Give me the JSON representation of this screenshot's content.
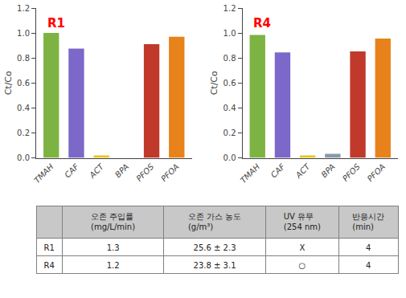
{
  "chart_data": [
    {
      "type": "bar",
      "categories": [
        "TMAH",
        "CAF",
        "ACT",
        "BPA",
        "PFOS",
        "PFOA"
      ],
      "values": [
        1.0,
        0.875,
        0.02,
        0.0,
        0.91,
        0.97
      ],
      "colors": [
        "#7CB342",
        "#7B68C8",
        "#E6C619",
        "#9B9B9B",
        "#C0392B",
        "#E8821A"
      ],
      "ylabel": "Ct/Co",
      "ylim": [
        0,
        1.2
      ],
      "yticks": [
        {
          "value": 0,
          "label": "0.0"
        },
        0.2,
        0.4,
        0.6,
        0.8,
        {
          "value": 1,
          "label": "1.0"
        },
        1.2
      ],
      "grid": false,
      "annotations": [
        {
          "text": "R1",
          "color": "#FF0000"
        }
      ]
    },
    {
      "type": "bar",
      "categories": [
        "TMAH",
        "CAF",
        "ACT",
        "BPA",
        "PFOS",
        "PFOA"
      ],
      "values": [
        0.985,
        0.845,
        0.02,
        0.032,
        0.853,
        0.955
      ],
      "colors": [
        "#7CB342",
        "#7B68C8",
        "#E6C619",
        "#8899AA",
        "#C0392B",
        "#E8821A"
      ],
      "ylabel": "Ct/Co",
      "ylim": [
        0,
        1.2
      ],
      "yticks": [
        {
          "value": 0,
          "label": "0.0"
        },
        0.2,
        0.4,
        0.6,
        0.8,
        {
          "value": 1,
          "label": "1.0"
        },
        1.2
      ],
      "grid": false,
      "annotations": [
        {
          "text": "R4",
          "color": "#FF0000"
        }
      ]
    },
    {
      "type": "table",
      "columns": [
        null,
        "오존 주입률\n(mg/L/min)",
        "오존 가스 농도\n(g/m³)",
        "UV 유무\n(254 nm)",
        "반응시간\n(min)"
      ],
      "rows": [
        [
          "R1",
          "1.3",
          "25.6 ± 2.3",
          "X",
          "4"
        ],
        [
          "R4",
          "1.2",
          "23.8 ± 3.1",
          "○",
          "4"
        ]
      ],
      "color": "#C8C8C8"
    }
  ]
}
